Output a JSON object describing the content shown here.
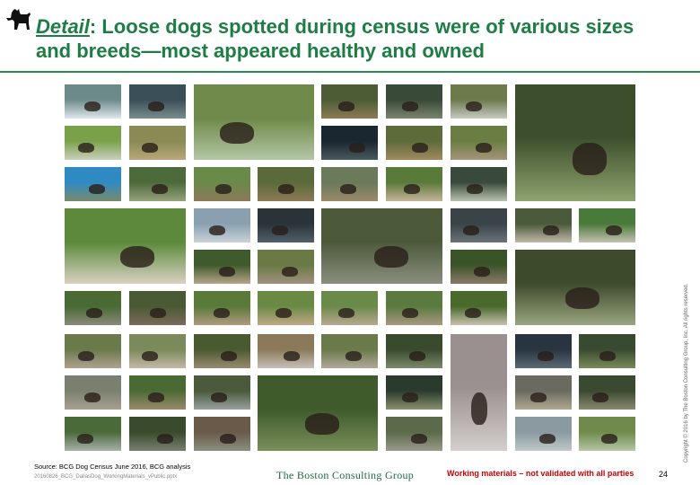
{
  "header": {
    "title_keyword": "Detail",
    "title_rest": ": Loose dogs spotted during census were of various sizes and breeds—most appeared healthy and owned",
    "icon": "dog-silhouette-icon"
  },
  "colors": {
    "title": "#1e7d45",
    "rule": "#2f8a55",
    "warning": "#cc0000"
  },
  "photos": [
    {
      "c1": "#6f8a4a",
      "c2": "#b5c6a6"
    },
    {
      "c1": "#3c4e2c",
      "c2": "#8fa36f"
    },
    {
      "c1": "#5c8a3a",
      "c2": "#d9d2c4"
    },
    {
      "c1": "#4d5a3a",
      "c2": "#8a8f80"
    },
    {
      "c1": "#3e4a2c",
      "c2": "#9aa580"
    },
    {
      "c1": "#3f5b2c",
      "c2": "#7a8f5a"
    },
    {
      "c1": "#9a9090",
      "c2": "#d4cfcc"
    },
    {
      "c1": "#6d8a8a",
      "c2": "#dfe6ea"
    },
    {
      "c1": "#3a4f58",
      "c2": "#7a8c8c"
    },
    {
      "c1": "#4c5d36",
      "c2": "#8d7a55"
    },
    {
      "c1": "#3a4a38",
      "c2": "#7a8470"
    },
    {
      "c1": "#6d7a4c",
      "c2": "#c6c9c0"
    },
    {
      "c1": "#7aa04a",
      "c2": "#c9d0bc"
    },
    {
      "c1": "#8a8a55",
      "c2": "#b9a77a"
    },
    {
      "c1": "#1a2630",
      "c2": "#4a5a5c"
    },
    {
      "c1": "#5d6a3a",
      "c2": "#a08a60"
    },
    {
      "c1": "#6a7e44",
      "c2": "#a69478"
    },
    {
      "c1": "#2f8ac4",
      "c2": "#7a8a6a"
    },
    {
      "c1": "#4d6a3a",
      "c2": "#95a27a"
    },
    {
      "c1": "#6a8a4a",
      "c2": "#8a7a5a"
    },
    {
      "c1": "#5a6a3a",
      "c2": "#8e7a55"
    },
    {
      "c1": "#6a7a5a",
      "c2": "#9a8a6a"
    },
    {
      "c1": "#5a7a3a",
      "c2": "#c4b49a"
    },
    {
      "c1": "#3a4a3a",
      "c2": "#b9c2b0"
    },
    {
      "c1": "#8aa0b0",
      "c2": "#c9d2d8"
    },
    {
      "c1": "#2a3438",
      "c2": "#50606a"
    },
    {
      "c1": "#3a4448",
      "c2": "#6a7478"
    },
    {
      "c1": "#4a5a3a",
      "c2": "#c0b8a8"
    },
    {
      "c1": "#4a7a3a",
      "c2": "#c4c0b0"
    },
    {
      "c1": "#3f5a2c",
      "c2": "#b6a58a"
    },
    {
      "c1": "#6a7a44",
      "c2": "#a09080"
    },
    {
      "c1": "#3a5428",
      "c2": "#8a7a6a"
    },
    {
      "c1": "#4a6a34",
      "c2": "#8a8a7a"
    },
    {
      "c1": "#4a5a34",
      "c2": "#7a6a5a"
    },
    {
      "c1": "#5a7a3a",
      "c2": "#b09a80"
    },
    {
      "c1": "#6a8a44",
      "c2": "#c0a888"
    },
    {
      "c1": "#6a8a4a",
      "c2": "#b8a890"
    },
    {
      "c1": "#5a7a40",
      "c2": "#a89880"
    },
    {
      "c1": "#4a6a2c",
      "c2": "#c8c0b0"
    },
    {
      "c1": "#6a7a4a",
      "c2": "#b0a090"
    },
    {
      "c1": "#7a8a5a",
      "c2": "#c4b8a8"
    },
    {
      "c1": "#4a5a30",
      "c2": "#9a8a70"
    },
    {
      "c1": "#8a7a5a",
      "c2": "#c8c0b8"
    },
    {
      "c1": "#6a7a4a",
      "c2": "#b0a898"
    },
    {
      "c1": "#3a4a2c",
      "c2": "#7a8a6a"
    },
    {
      "c1": "#2a3440",
      "c2": "#5a6a74"
    },
    {
      "c1": "#3a4a30",
      "c2": "#7a8a5a"
    },
    {
      "c1": "#7a8070",
      "c2": "#a8a090"
    },
    {
      "c1": "#4a6a34",
      "c2": "#9a8a6a"
    },
    {
      "c1": "#4a5a3a",
      "c2": "#9aa0a0"
    },
    {
      "c1": "#2a3a2c",
      "c2": "#8a9070"
    },
    {
      "c1": "#6a6a60",
      "c2": "#b0a890"
    },
    {
      "c1": "#3a4a30",
      "c2": "#8a8a70"
    },
    {
      "c1": "#4a6a3a",
      "c2": "#a8b0a8"
    },
    {
      "c1": "#3a4a2c",
      "c2": "#7a8070"
    },
    {
      "c1": "#6a5a4a",
      "c2": "#8a9080"
    },
    {
      "c1": "#5a6a4a",
      "c2": "#9a9a8a"
    },
    {
      "c1": "#8a9aa0",
      "c2": "#c0c8c8"
    }
  ],
  "footer": {
    "source": "Source: BCG Dog Census June 2016, BCG analysis",
    "filename": "20160826_BCG_DallasDog_WorkingMaterials_vPublic.pptx",
    "logo": "The Boston Consulting Group",
    "warning": "Working materials – not validated with all parties",
    "page_number": "24",
    "copyright": "Copyright © 2016 by The Boston Consulting Group, Inc. All rights reserved."
  }
}
